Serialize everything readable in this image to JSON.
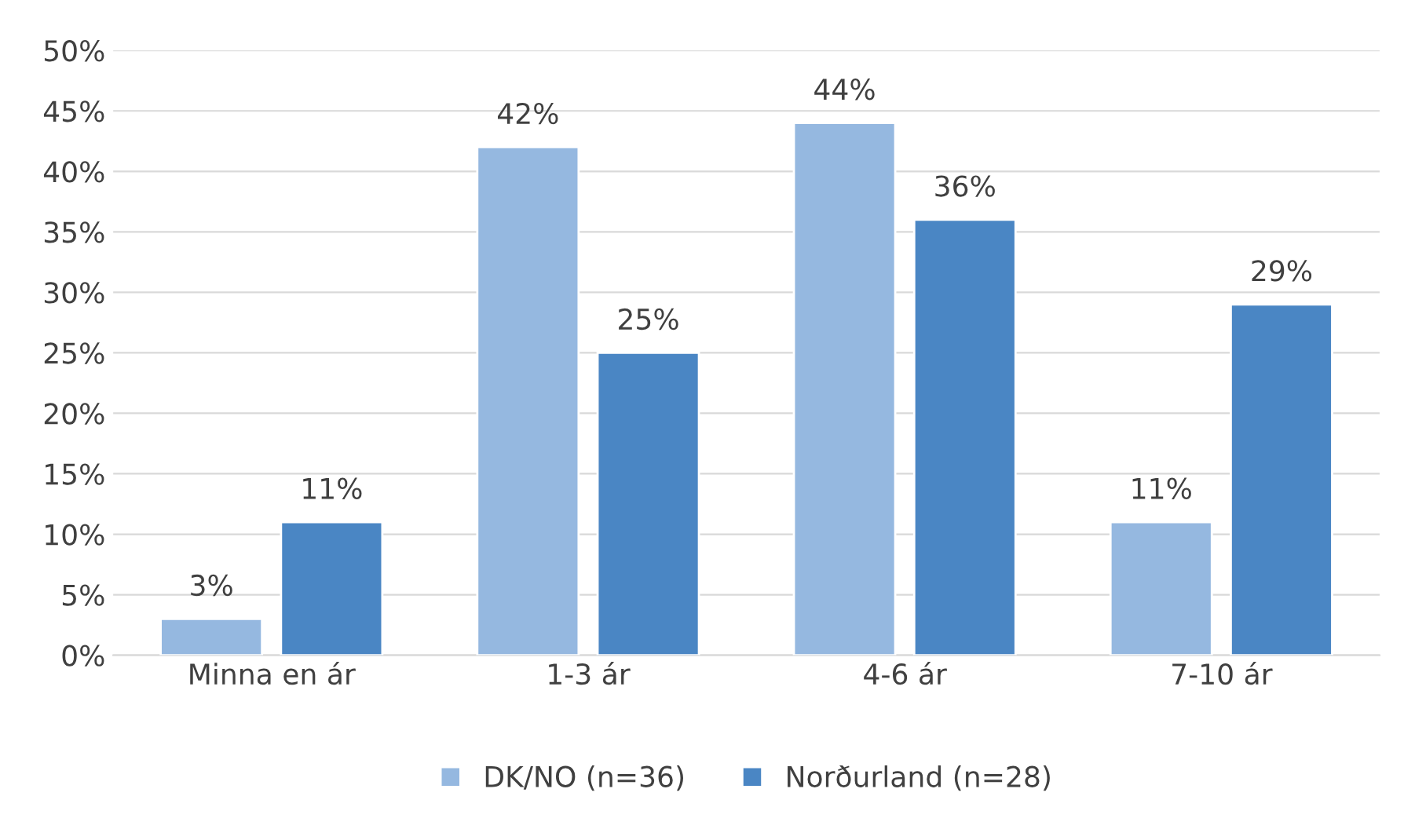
{
  "chart_data": {
    "type": "bar",
    "categories": [
      "Minna en ár",
      "1-3 ár",
      "4-6 ár",
      "7-10 ár"
    ],
    "series": [
      {
        "name": "DK/NO (n=36)",
        "color": "#95b8e0",
        "values": [
          3,
          42,
          44,
          11
        ],
        "value_labels": [
          "3%",
          "42%",
          "44%",
          "11%"
        ]
      },
      {
        "name": "Norðurland (n=28)",
        "color": "#4a86c4",
        "values": [
          11,
          25,
          36,
          29
        ],
        "value_labels": [
          "11%",
          "25%",
          "36%",
          "29%"
        ]
      }
    ],
    "ylim": [
      0,
      50
    ],
    "yticks": [
      {
        "value": 0,
        "label": "0%"
      },
      {
        "value": 5,
        "label": "5%"
      },
      {
        "value": 10,
        "label": "10%"
      },
      {
        "value": 15,
        "label": "15%"
      },
      {
        "value": 20,
        "label": "20%"
      },
      {
        "value": 25,
        "label": "25%"
      },
      {
        "value": 30,
        "label": "30%"
      },
      {
        "value": 35,
        "label": "35%"
      },
      {
        "value": 40,
        "label": "40%"
      },
      {
        "value": 45,
        "label": "45%"
      },
      {
        "value": 50,
        "label": "50%"
      }
    ],
    "grid": "y",
    "legend": "bottom"
  }
}
